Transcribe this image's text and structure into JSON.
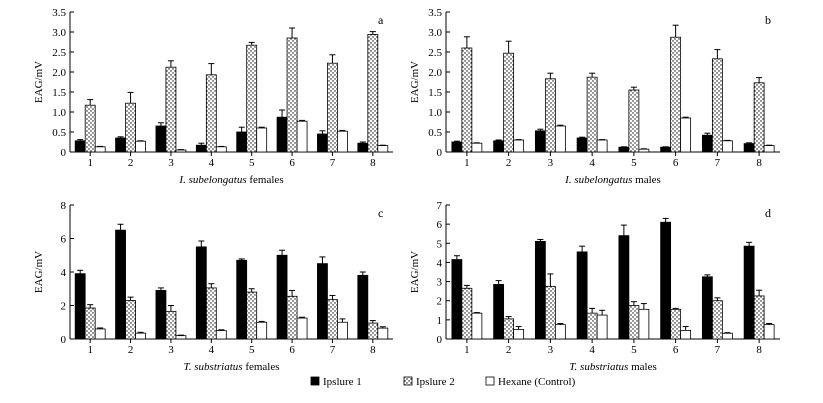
{
  "figure": {
    "legend": [
      {
        "name": "Ipslure 1",
        "fill": "black"
      },
      {
        "name": "Ipslure 2",
        "fill": "dotted"
      },
      {
        "name": "Hexane (Control)",
        "fill": "white"
      }
    ]
  },
  "chart_data": [
    {
      "id": "a",
      "type": "bar",
      "panel_label": "a",
      "title_species": "I. subelongatus",
      "title_sex": "females",
      "ylabel": "EAG/mV",
      "ylim": [
        0,
        3.5
      ],
      "yticks": [
        "0",
        "0.5",
        "1.0",
        "1.5",
        "2.0",
        "2.5",
        "3.0",
        "3.5"
      ],
      "categories": [
        "1",
        "2",
        "3",
        "4",
        "5",
        "6",
        "7",
        "8"
      ],
      "series": [
        {
          "name": "Ipslure 1",
          "fill": "black",
          "values": [
            0.28,
            0.35,
            0.65,
            0.17,
            0.5,
            0.87,
            0.45,
            0.22
          ],
          "errors": [
            0.03,
            0.03,
            0.08,
            0.05,
            0.12,
            0.18,
            0.08,
            0.03
          ]
        },
        {
          "name": "Ipslure 2",
          "fill": "dotted",
          "values": [
            1.17,
            1.22,
            2.12,
            1.93,
            2.67,
            2.85,
            2.22,
            2.94
          ],
          "errors": [
            0.14,
            0.27,
            0.16,
            0.28,
            0.07,
            0.25,
            0.21,
            0.07
          ]
        },
        {
          "name": "Hexane (Control)",
          "fill": "white",
          "values": [
            0.13,
            0.27,
            0.05,
            0.13,
            0.6,
            0.77,
            0.52,
            0.16
          ],
          "errors": [
            0.01,
            0.01,
            0.01,
            0.01,
            0.02,
            0.02,
            0.02,
            0.01
          ]
        }
      ]
    },
    {
      "id": "b",
      "type": "bar",
      "panel_label": "b",
      "title_species": "I. subelongatus",
      "title_sex": "males",
      "ylabel": "EAG/mV",
      "ylim": [
        0,
        3.5
      ],
      "yticks": [
        "0",
        "0.5",
        "1.0",
        "1.5",
        "2.0",
        "2.5",
        "3.0",
        "3.5"
      ],
      "categories": [
        "1",
        "2",
        "3",
        "4",
        "5",
        "6",
        "7",
        "8"
      ],
      "series": [
        {
          "name": "Ipslure 1",
          "fill": "black",
          "values": [
            0.25,
            0.28,
            0.53,
            0.35,
            0.12,
            0.12,
            0.42,
            0.21
          ],
          "errors": [
            0.02,
            0.02,
            0.04,
            0.02,
            0.01,
            0.01,
            0.05,
            0.02
          ]
        },
        {
          "name": "Ipslure 2",
          "fill": "dotted",
          "values": [
            2.6,
            2.47,
            1.83,
            1.87,
            1.55,
            2.87,
            2.33,
            1.73
          ],
          "errors": [
            0.28,
            0.3,
            0.14,
            0.1,
            0.07,
            0.3,
            0.23,
            0.13
          ]
        },
        {
          "name": "Hexane (Control)",
          "fill": "white",
          "values": [
            0.22,
            0.3,
            0.65,
            0.3,
            0.07,
            0.85,
            0.28,
            0.16
          ],
          "errors": [
            0.01,
            0.01,
            0.02,
            0.01,
            0.01,
            0.02,
            0.01,
            0.01
          ]
        }
      ]
    },
    {
      "id": "c",
      "type": "bar",
      "panel_label": "c",
      "title_species": "T. substriatus",
      "title_sex": "females",
      "ylabel": "EAG/mV",
      "ylim": [
        0,
        8
      ],
      "yticks": [
        "0",
        "2",
        "4",
        "6",
        "8"
      ],
      "categories": [
        "1",
        "2",
        "3",
        "4",
        "5",
        "6",
        "7",
        "8"
      ],
      "series": [
        {
          "name": "Ipslure 1",
          "fill": "black",
          "values": [
            3.9,
            6.5,
            2.9,
            5.5,
            4.7,
            5.0,
            4.5,
            3.8
          ],
          "errors": [
            0.2,
            0.35,
            0.15,
            0.35,
            0.08,
            0.3,
            0.4,
            0.2
          ]
        },
        {
          "name": "Ipslure 2",
          "fill": "dotted",
          "values": [
            1.85,
            2.3,
            1.65,
            3.05,
            2.8,
            2.55,
            2.35,
            0.95
          ],
          "errors": [
            0.2,
            0.2,
            0.35,
            0.25,
            0.2,
            0.35,
            0.25,
            0.15
          ]
        },
        {
          "name": "Hexane (Control)",
          "fill": "white",
          "values": [
            0.6,
            0.35,
            0.2,
            0.5,
            1.0,
            1.25,
            1.0,
            0.65
          ],
          "errors": [
            0.06,
            0.05,
            0.03,
            0.05,
            0.05,
            0.05,
            0.2,
            0.08
          ]
        }
      ]
    },
    {
      "id": "d",
      "type": "bar",
      "panel_label": "d",
      "title_species": "T. substriatus",
      "title_sex": "males",
      "ylabel": "EAG/mV",
      "ylim": [
        0,
        7
      ],
      "yticks": [
        "0",
        "1",
        "2",
        "3",
        "4",
        "5",
        "6",
        "7"
      ],
      "categories": [
        "1",
        "2",
        "3",
        "4",
        "5",
        "6",
        "7",
        "8"
      ],
      "series": [
        {
          "name": "Ipslure 1",
          "fill": "black",
          "values": [
            4.15,
            2.85,
            5.1,
            4.55,
            5.4,
            6.1,
            3.25,
            4.85
          ],
          "errors": [
            0.2,
            0.2,
            0.1,
            0.3,
            0.55,
            0.2,
            0.1,
            0.2
          ]
        },
        {
          "name": "Ipslure 2",
          "fill": "dotted",
          "values": [
            2.65,
            1.05,
            2.75,
            1.35,
            1.75,
            1.55,
            2.0,
            2.25
          ],
          "errors": [
            0.15,
            0.12,
            0.65,
            0.25,
            0.2,
            0.05,
            0.15,
            0.3
          ]
        },
        {
          "name": "Hexane (Control)",
          "fill": "white",
          "values": [
            1.35,
            0.5,
            0.75,
            1.25,
            1.55,
            0.45,
            0.3,
            0.75
          ],
          "errors": [
            0.03,
            0.15,
            0.06,
            0.25,
            0.3,
            0.2,
            0.03,
            0.06
          ]
        }
      ]
    }
  ]
}
